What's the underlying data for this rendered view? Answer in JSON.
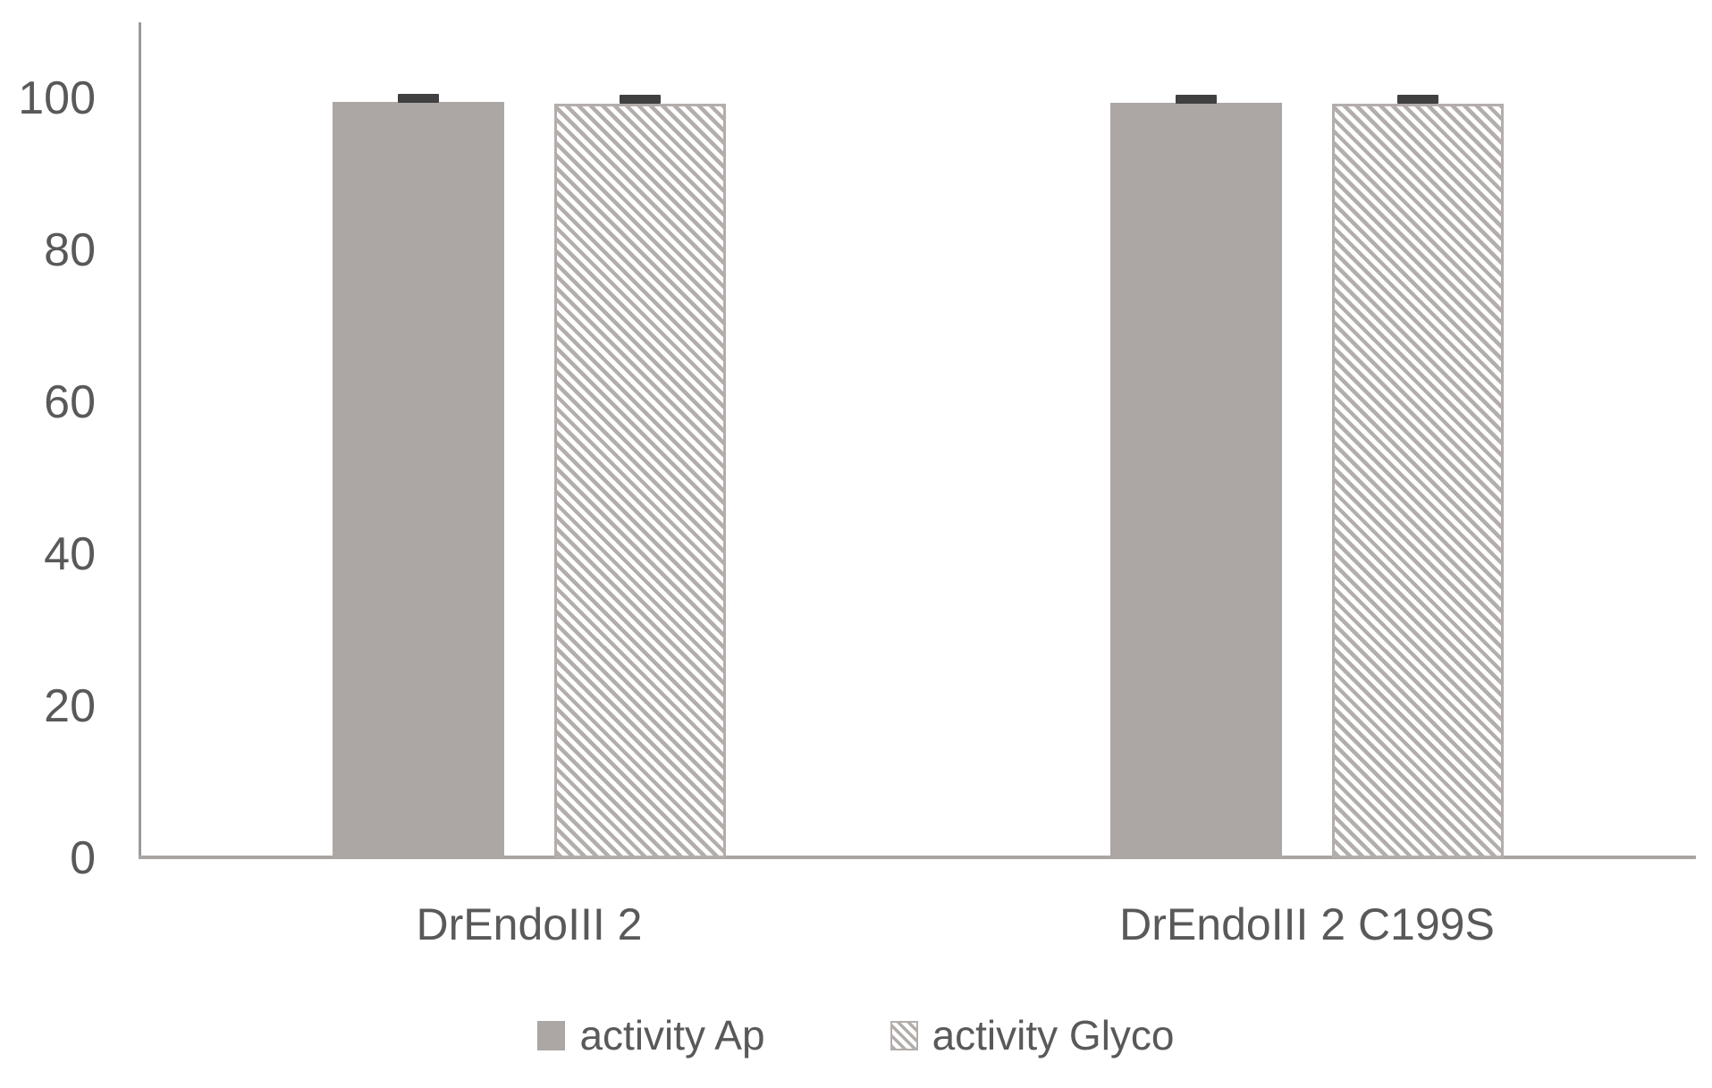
{
  "chart_data": {
    "type": "bar",
    "title": "",
    "xlabel": "",
    "ylabel": "",
    "categories": [
      "DrEndoIII 2",
      "DrEndoIII 2 C199S"
    ],
    "series": [
      {
        "name": "activity Ap",
        "style": "solid",
        "values": [
          99.5,
          99.4
        ],
        "errors": [
          0.5,
          0.5
        ]
      },
      {
        "name": "activity Glyco",
        "style": "hatched",
        "values": [
          99.3,
          99.3
        ],
        "errors": [
          0.6,
          0.6
        ]
      }
    ],
    "ylim": [
      0,
      110
    ],
    "y_ticks": [
      0,
      20,
      40,
      60,
      80,
      100
    ],
    "grid": false,
    "legend_position": "bottom",
    "colors": {
      "bar_solid": "#aca7a4",
      "hatch_line": "#b3aeab",
      "error_cap": "#404040",
      "axis_line": "#9a9a99",
      "text": "#595959",
      "background": "#ffffff"
    }
  }
}
